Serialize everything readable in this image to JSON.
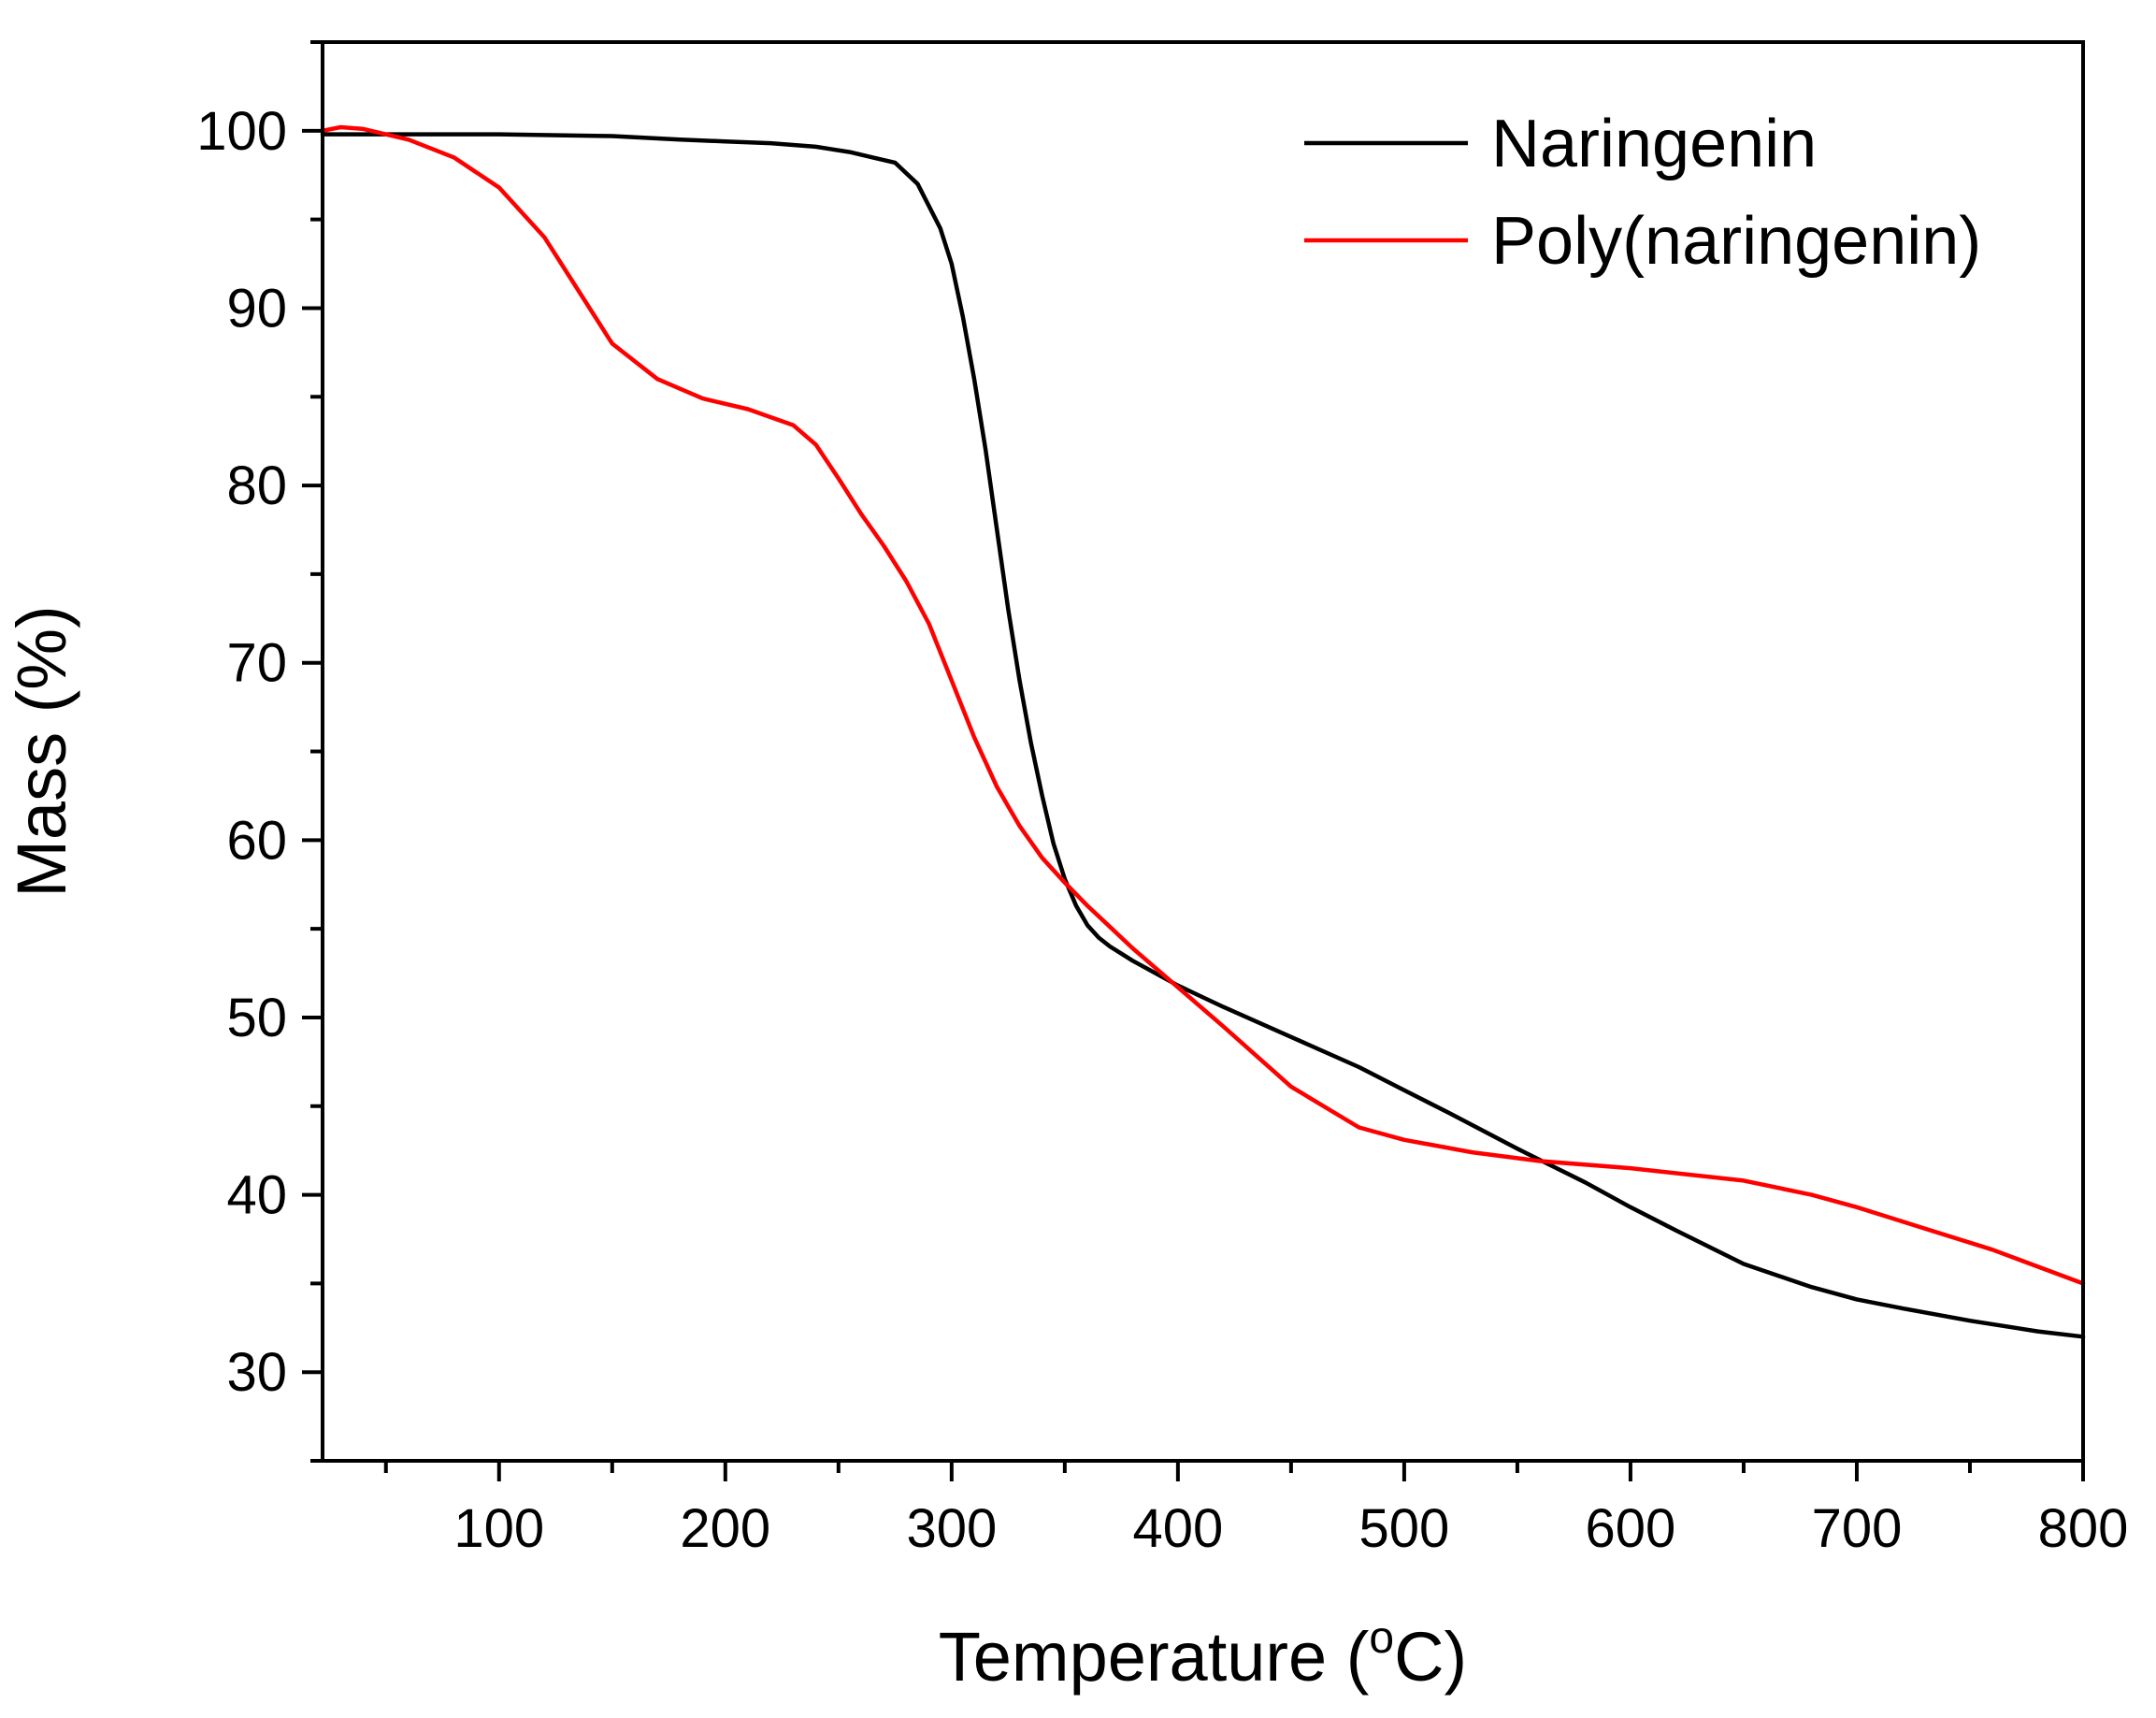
{
  "chart_data": {
    "type": "line",
    "title": "",
    "xlabel": "Temperature (°C)",
    "xlabel_parts": {
      "main": "Temperature (",
      "sup": "o",
      "rest": "C)"
    },
    "ylabel": "Mass (%)",
    "xlim": [
      22,
      800
    ],
    "ylim": [
      25,
      105
    ],
    "x_ticks": [
      100,
      200,
      300,
      400,
      500,
      600,
      700,
      800
    ],
    "x_tick_labels": [
      "100",
      "200",
      "300",
      "400",
      "500",
      "600",
      "700",
      "800"
    ],
    "y_ticks": [
      30,
      40,
      50,
      60,
      70,
      80,
      90,
      100
    ],
    "y_tick_labels": [
      "30",
      "40",
      "50",
      "60",
      "70",
      "80",
      "90",
      "100"
    ],
    "grid": false,
    "legend_position": "top-right",
    "series": [
      {
        "name": "Naringenin",
        "color": "#000000",
        "x": [
          22,
          50,
          100,
          150,
          180,
          200,
          220,
          240,
          255,
          265,
          275,
          285,
          295,
          300,
          305,
          310,
          315,
          320,
          325,
          330,
          335,
          340,
          345,
          350,
          355,
          360,
          365,
          370,
          375,
          380,
          390,
          400,
          420,
          450,
          480,
          500,
          520,
          550,
          580,
          600,
          620,
          650,
          680,
          700,
          720,
          750,
          780,
          800
        ],
        "y": [
          99.8,
          99.8,
          99.8,
          99.7,
          99.5,
          99.4,
          99.3,
          99.1,
          98.8,
          98.5,
          98.2,
          97.0,
          94.5,
          92.5,
          89.5,
          86.0,
          82.0,
          77.5,
          73.0,
          69.0,
          65.5,
          62.5,
          59.8,
          57.8,
          56.3,
          55.2,
          54.5,
          54.0,
          53.6,
          53.2,
          52.5,
          51.8,
          50.6,
          48.9,
          47.2,
          45.9,
          44.6,
          42.6,
          40.7,
          39.3,
          38.0,
          36.1,
          34.8,
          34.1,
          33.6,
          32.9,
          32.3,
          32.0
        ]
      },
      {
        "name": "Poly(naringenin)",
        "color": "#ff0000",
        "x": [
          22,
          30,
          40,
          60,
          80,
          100,
          120,
          135,
          150,
          170,
          190,
          210,
          230,
          240,
          250,
          260,
          270,
          280,
          290,
          300,
          310,
          320,
          330,
          340,
          350,
          360,
          370,
          380,
          400,
          420,
          450,
          480,
          500,
          530,
          560,
          600,
          650,
          680,
          700,
          730,
          760,
          800
        ],
        "y": [
          100.0,
          100.2,
          100.1,
          99.5,
          98.5,
          96.8,
          94.0,
          91.0,
          88.0,
          86.0,
          84.9,
          84.3,
          83.4,
          82.3,
          80.4,
          78.4,
          76.6,
          74.6,
          72.2,
          69.0,
          65.8,
          63.0,
          60.8,
          59.0,
          57.6,
          56.3,
          55.1,
          53.9,
          51.7,
          49.5,
          46.1,
          43.8,
          43.1,
          42.4,
          41.9,
          41.5,
          40.8,
          40.0,
          39.3,
          38.1,
          36.9,
          35.0
        ]
      }
    ]
  }
}
